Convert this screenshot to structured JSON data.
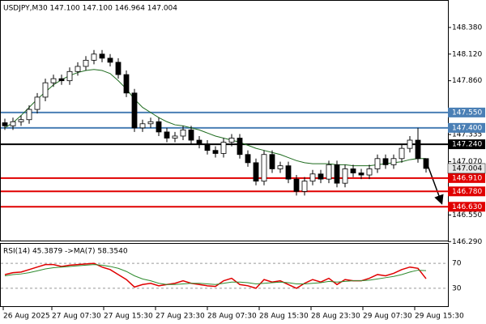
{
  "chart_data": [
    {
      "type": "candlestick",
      "title": "USDJPY,M30  147.100 147.100 146.964 147.004",
      "open": [
        147.45,
        147.42,
        147.46,
        147.48,
        147.58,
        147.7,
        147.84,
        147.88,
        147.86,
        147.95,
        148.0,
        148.06,
        148.12,
        148.08,
        148.04,
        147.92,
        147.74,
        147.4,
        147.44,
        147.46,
        147.36,
        147.3,
        147.32,
        147.38,
        147.28,
        147.24,
        147.18,
        147.15,
        147.26,
        147.3,
        147.14,
        147.06,
        146.88,
        147.14,
        147.0,
        147.03,
        146.9,
        146.78,
        146.88,
        146.95,
        146.9,
        147.04,
        146.86,
        147.0,
        146.96,
        146.94,
        147.0,
        147.1,
        147.04,
        147.1,
        147.2,
        147.28,
        147.1
      ],
      "high": [
        147.49,
        147.5,
        147.52,
        147.62,
        147.74,
        147.88,
        147.92,
        147.92,
        147.99,
        148.04,
        148.1,
        148.16,
        148.16,
        148.12,
        148.08,
        147.96,
        147.78,
        147.48,
        147.5,
        147.5,
        147.4,
        147.36,
        147.42,
        147.42,
        147.32,
        147.28,
        147.22,
        147.3,
        147.34,
        147.34,
        147.18,
        147.1,
        147.18,
        147.18,
        147.07,
        147.07,
        146.94,
        146.92,
        146.99,
        146.99,
        147.08,
        147.08,
        147.04,
        147.04,
        147.0,
        147.04,
        147.14,
        147.14,
        147.14,
        147.24,
        147.32,
        147.4,
        147.1
      ],
      "low": [
        147.38,
        147.38,
        147.42,
        147.44,
        147.54,
        147.66,
        147.8,
        147.82,
        147.82,
        147.91,
        147.96,
        148.02,
        148.04,
        148.0,
        147.88,
        147.7,
        147.36,
        147.36,
        147.4,
        147.32,
        147.26,
        147.26,
        147.28,
        147.24,
        147.2,
        147.14,
        147.11,
        147.11,
        147.22,
        147.1,
        147.02,
        146.84,
        146.84,
        146.96,
        146.96,
        146.86,
        146.74,
        146.74,
        146.84,
        146.86,
        146.86,
        146.82,
        146.82,
        146.92,
        146.9,
        146.9,
        146.96,
        147.0,
        147.0,
        147.06,
        147.16,
        147.06,
        146.964
      ],
      "close": [
        147.42,
        147.46,
        147.48,
        147.58,
        147.7,
        147.84,
        147.88,
        147.86,
        147.95,
        148.0,
        148.06,
        148.12,
        148.08,
        148.04,
        147.92,
        147.74,
        147.4,
        147.44,
        147.46,
        147.36,
        147.3,
        147.32,
        147.38,
        147.28,
        147.24,
        147.18,
        147.15,
        147.26,
        147.3,
        147.14,
        147.06,
        146.88,
        147.14,
        147.0,
        147.03,
        146.9,
        146.78,
        146.88,
        146.95,
        146.9,
        147.04,
        146.86,
        147.0,
        146.96,
        146.94,
        147.0,
        147.1,
        147.04,
        147.1,
        147.2,
        147.28,
        147.1,
        147.004
      ],
      "lines": [
        {
          "color": "#1e6b1e",
          "values": [
            147.4,
            147.45,
            147.52,
            147.6,
            147.68,
            147.75,
            147.82,
            147.87,
            147.91,
            147.94,
            147.96,
            147.97,
            147.96,
            147.93,
            147.86,
            147.78,
            147.68,
            147.6,
            147.55,
            147.5,
            147.46,
            147.43,
            147.42,
            147.4,
            147.38,
            147.35,
            147.32,
            147.3,
            147.28,
            147.26,
            147.23,
            147.2,
            147.18,
            147.16,
            147.14,
            147.11,
            147.08,
            147.06,
            147.05,
            147.05,
            147.05,
            147.04,
            147.04,
            147.03,
            147.03,
            147.03,
            147.04,
            147.05,
            147.06,
            147.07,
            147.09,
            147.1,
            147.1
          ]
        }
      ],
      "levels": [
        {
          "value": 147.55,
          "label": "147.550",
          "color": "#4a7fb5"
        },
        {
          "value": 147.4,
          "label": "147.400",
          "color": "#4a7fb5"
        },
        {
          "value": 147.24,
          "label": "147.240",
          "color": "#000000"
        },
        {
          "value": 146.91,
          "label": "146.910",
          "color": "#e00000"
        },
        {
          "value": 146.78,
          "label": "146.780",
          "color": "#e00000"
        },
        {
          "value": 146.63,
          "label": "146.630",
          "color": "#e00000"
        }
      ],
      "current": {
        "value": 147.004,
        "label": "147.004"
      },
      "ylim": [
        146.3,
        148.64
      ],
      "yticks": [
        {
          "value": 148.38,
          "label": "148.380"
        },
        {
          "value": 148.12,
          "label": "148.120"
        },
        {
          "value": 147.86,
          "label": "147.860"
        },
        {
          "value": 147.335,
          "label": "147.335"
        },
        {
          "value": 147.07,
          "label": "147.070"
        },
        {
          "value": 146.55,
          "label": "146.550"
        },
        {
          "value": 146.29,
          "label": "146.290"
        }
      ],
      "xticks": [
        {
          "value": 0,
          "label": "26 Aug 2025"
        },
        {
          "value": 6,
          "label": "27 Aug 07:30"
        },
        {
          "value": 12.4,
          "label": "27 Aug 15:30"
        },
        {
          "value": 18.8,
          "label": "27 Aug 23:30"
        },
        {
          "value": 25.2,
          "label": "28 Aug 07:30"
        },
        {
          "value": 31.6,
          "label": "28 Aug 15:30"
        },
        {
          "value": 38,
          "label": "28 Aug 23:30"
        },
        {
          "value": 44.4,
          "label": "29 Aug 07:30"
        },
        {
          "value": 50.8,
          "label": "29 Aug 15:30"
        }
      ]
    },
    {
      "type": "line",
      "title": "RSI(14) 45.3879  ->MA(7) 58.3540",
      "series": [
        {
          "color": "#e00000",
          "values": [
            52,
            55,
            56,
            60,
            64,
            68,
            68,
            65,
            67,
            68,
            69,
            70,
            64,
            60,
            52,
            44,
            32,
            36,
            38,
            34,
            36,
            38,
            42,
            38,
            36,
            34,
            33,
            42,
            46,
            36,
            34,
            30,
            44,
            40,
            42,
            36,
            30,
            38,
            44,
            40,
            46,
            36,
            44,
            42,
            42,
            46,
            52,
            50,
            54,
            60,
            64,
            62,
            45.3879
          ]
        },
        {
          "color": "#2e8b2e",
          "values": [
            50,
            52,
            53,
            55,
            58,
            61,
            63,
            64,
            65,
            66,
            67,
            68,
            67,
            65,
            62,
            57,
            50,
            45,
            42,
            38,
            36,
            36,
            37,
            38,
            38,
            37,
            36,
            38,
            40,
            40,
            39,
            37,
            38,
            39,
            40,
            39,
            37,
            37,
            38,
            39,
            41,
            40,
            41,
            42,
            42,
            43,
            45,
            47,
            49,
            52,
            56,
            59,
            58.354
          ]
        }
      ],
      "ylim": [
        0,
        100
      ],
      "yticks": [
        70,
        30
      ]
    }
  ]
}
